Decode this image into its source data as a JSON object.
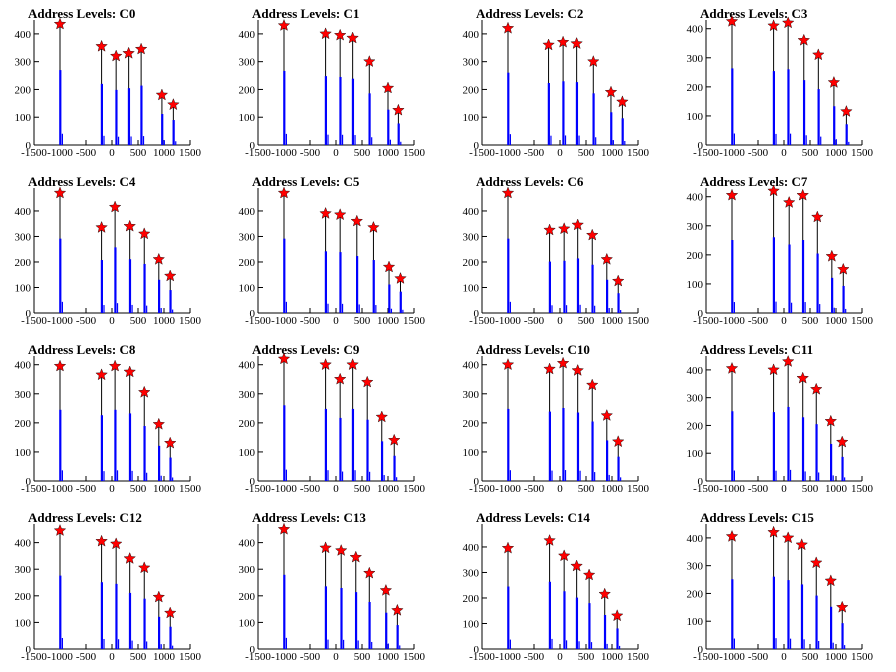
{
  "figure": {
    "background": "#ffffff",
    "histogram_color": "#0000ff",
    "marker_color": "#ff0000",
    "marker_shape": "star"
  },
  "chart_data": [
    {
      "type": "bar",
      "title": "Address Levels: C0",
      "xlim": [
        -1500,
        1500
      ],
      "ylim": [
        0,
        450
      ],
      "x_ticks": [
        -1500,
        -1000,
        -500,
        0,
        500,
        1000,
        1500
      ],
      "y_ticks": [
        0,
        100,
        200,
        300,
        400
      ],
      "peaks": [
        {
          "x": -1000,
          "y": 435
        },
        {
          "x": -200,
          "y": 355
        },
        {
          "x": 80,
          "y": 320
        },
        {
          "x": 320,
          "y": 330
        },
        {
          "x": 560,
          "y": 345
        },
        {
          "x": 960,
          "y": 180
        },
        {
          "x": 1180,
          "y": 145
        }
      ]
    },
    {
      "type": "bar",
      "title": "Address Levels: C1",
      "xlim": [
        -1500,
        1500
      ],
      "ylim": [
        0,
        450
      ],
      "x_ticks": [
        -1500,
        -1000,
        -500,
        0,
        500,
        1000,
        1500
      ],
      "y_ticks": [
        0,
        100,
        200,
        300,
        400
      ],
      "peaks": [
        {
          "x": -1000,
          "y": 430
        },
        {
          "x": -200,
          "y": 400
        },
        {
          "x": 80,
          "y": 395
        },
        {
          "x": 320,
          "y": 385
        },
        {
          "x": 640,
          "y": 300
        },
        {
          "x": 1000,
          "y": 205
        },
        {
          "x": 1200,
          "y": 125
        }
      ]
    },
    {
      "type": "bar",
      "title": "Address Levels: C2",
      "xlim": [
        -1500,
        1500
      ],
      "ylim": [
        0,
        450
      ],
      "x_ticks": [
        -1500,
        -1000,
        -500,
        0,
        500,
        1000,
        1500
      ],
      "y_ticks": [
        0,
        100,
        200,
        300,
        400
      ],
      "peaks": [
        {
          "x": -1000,
          "y": 420
        },
        {
          "x": -220,
          "y": 360
        },
        {
          "x": 60,
          "y": 370
        },
        {
          "x": 320,
          "y": 365
        },
        {
          "x": 640,
          "y": 300
        },
        {
          "x": 980,
          "y": 190
        },
        {
          "x": 1200,
          "y": 155
        }
      ]
    },
    {
      "type": "bar",
      "title": "Address Levels: C3",
      "xlim": [
        -1500,
        1500
      ],
      "ylim": [
        0,
        430
      ],
      "x_ticks": [
        -1500,
        -1000,
        -500,
        0,
        500,
        1000,
        1500
      ],
      "y_ticks": [
        0,
        100,
        200,
        300,
        400
      ],
      "peaks": [
        {
          "x": -1000,
          "y": 425
        },
        {
          "x": -200,
          "y": 410
        },
        {
          "x": 80,
          "y": 420
        },
        {
          "x": 380,
          "y": 360
        },
        {
          "x": 660,
          "y": 310
        },
        {
          "x": 960,
          "y": 215
        },
        {
          "x": 1200,
          "y": 115
        }
      ]
    },
    {
      "type": "bar",
      "title": "Address Levels: C4",
      "xlim": [
        -1500,
        1500
      ],
      "ylim": [
        0,
        490
      ],
      "x_ticks": [
        -1500,
        -1000,
        -500,
        0,
        500,
        1000,
        1500
      ],
      "y_ticks": [
        0,
        100,
        200,
        300,
        400
      ],
      "peaks": [
        {
          "x": -1000,
          "y": 470
        },
        {
          "x": -200,
          "y": 335
        },
        {
          "x": 60,
          "y": 415
        },
        {
          "x": 340,
          "y": 340
        },
        {
          "x": 620,
          "y": 310
        },
        {
          "x": 900,
          "y": 210
        },
        {
          "x": 1120,
          "y": 145
        }
      ]
    },
    {
      "type": "bar",
      "title": "Address Levels: C5",
      "xlim": [
        -1500,
        1500
      ],
      "ylim": [
        0,
        490
      ],
      "x_ticks": [
        -1500,
        -1000,
        -500,
        0,
        500,
        1000,
        1500
      ],
      "y_ticks": [
        0,
        100,
        200,
        300,
        400
      ],
      "peaks": [
        {
          "x": -1000,
          "y": 470
        },
        {
          "x": -200,
          "y": 390
        },
        {
          "x": 80,
          "y": 385
        },
        {
          "x": 400,
          "y": 360
        },
        {
          "x": 720,
          "y": 335
        },
        {
          "x": 1020,
          "y": 180
        },
        {
          "x": 1240,
          "y": 135
        }
      ]
    },
    {
      "type": "bar",
      "title": "Address Levels: C6",
      "xlim": [
        -1500,
        1500
      ],
      "ylim": [
        0,
        490
      ],
      "x_ticks": [
        -1500,
        -1000,
        -500,
        0,
        500,
        1000,
        1500
      ],
      "y_ticks": [
        0,
        100,
        200,
        300,
        400
      ],
      "peaks": [
        {
          "x": -1000,
          "y": 470
        },
        {
          "x": -200,
          "y": 325
        },
        {
          "x": 80,
          "y": 330
        },
        {
          "x": 340,
          "y": 345
        },
        {
          "x": 620,
          "y": 305
        },
        {
          "x": 900,
          "y": 210
        },
        {
          "x": 1120,
          "y": 125
        }
      ]
    },
    {
      "type": "bar",
      "title": "Address Levels: C7",
      "xlim": [
        -1500,
        1500
      ],
      "ylim": [
        0,
        430
      ],
      "x_ticks": [
        -1500,
        -1000,
        -500,
        0,
        500,
        1000,
        1500
      ],
      "y_ticks": [
        0,
        100,
        200,
        300,
        400
      ],
      "peaks": [
        {
          "x": -1000,
          "y": 405
        },
        {
          "x": -200,
          "y": 420
        },
        {
          "x": 100,
          "y": 380
        },
        {
          "x": 360,
          "y": 405
        },
        {
          "x": 640,
          "y": 330
        },
        {
          "x": 920,
          "y": 195
        },
        {
          "x": 1140,
          "y": 150
        }
      ]
    },
    {
      "type": "bar",
      "title": "Address Levels: C8",
      "xlim": [
        -1500,
        1500
      ],
      "ylim": [
        0,
        430
      ],
      "x_ticks": [
        -1500,
        -1000,
        -500,
        0,
        500,
        1000,
        1500
      ],
      "y_ticks": [
        0,
        100,
        200,
        300,
        400
      ],
      "peaks": [
        {
          "x": -1000,
          "y": 395
        },
        {
          "x": -200,
          "y": 365
        },
        {
          "x": 60,
          "y": 395
        },
        {
          "x": 340,
          "y": 375
        },
        {
          "x": 620,
          "y": 305
        },
        {
          "x": 900,
          "y": 195
        },
        {
          "x": 1120,
          "y": 130
        }
      ]
    },
    {
      "type": "bar",
      "title": "Address Levels: C9",
      "xlim": [
        -1500,
        1500
      ],
      "ylim": [
        0,
        430
      ],
      "x_ticks": [
        -1500,
        -1000,
        -500,
        0,
        500,
        1000,
        1500
      ],
      "y_ticks": [
        0,
        100,
        200,
        300,
        400
      ],
      "peaks": [
        {
          "x": -1000,
          "y": 420
        },
        {
          "x": -200,
          "y": 400
        },
        {
          "x": 80,
          "y": 350
        },
        {
          "x": 320,
          "y": 400
        },
        {
          "x": 600,
          "y": 340
        },
        {
          "x": 880,
          "y": 220
        },
        {
          "x": 1120,
          "y": 140
        }
      ]
    },
    {
      "type": "bar",
      "title": "Address Levels: C10",
      "xlim": [
        -1500,
        1500
      ],
      "ylim": [
        0,
        430
      ],
      "x_ticks": [
        -1500,
        -1000,
        -500,
        0,
        500,
        1000,
        1500
      ],
      "y_ticks": [
        0,
        100,
        200,
        300,
        400
      ],
      "peaks": [
        {
          "x": -1000,
          "y": 400
        },
        {
          "x": -200,
          "y": 385
        },
        {
          "x": 60,
          "y": 405
        },
        {
          "x": 340,
          "y": 380
        },
        {
          "x": 620,
          "y": 330
        },
        {
          "x": 900,
          "y": 225
        },
        {
          "x": 1120,
          "y": 135
        }
      ]
    },
    {
      "type": "bar",
      "title": "Address Levels: C11",
      "xlim": [
        -1500,
        1500
      ],
      "ylim": [
        0,
        450
      ],
      "x_ticks": [
        -1500,
        -1000,
        -500,
        0,
        500,
        1000,
        1500
      ],
      "y_ticks": [
        0,
        100,
        200,
        300,
        400
      ],
      "peaks": [
        {
          "x": -1000,
          "y": 405
        },
        {
          "x": -200,
          "y": 400
        },
        {
          "x": 80,
          "y": 430
        },
        {
          "x": 360,
          "y": 370
        },
        {
          "x": 620,
          "y": 330
        },
        {
          "x": 900,
          "y": 215
        },
        {
          "x": 1120,
          "y": 140
        }
      ]
    },
    {
      "type": "bar",
      "title": "Address Levels: C12",
      "xlim": [
        -1500,
        1500
      ],
      "ylim": [
        0,
        470
      ],
      "x_ticks": [
        -1500,
        -1000,
        -500,
        0,
        500,
        1000,
        1500
      ],
      "y_ticks": [
        0,
        100,
        200,
        300,
        400
      ],
      "peaks": [
        {
          "x": -1000,
          "y": 445
        },
        {
          "x": -200,
          "y": 405
        },
        {
          "x": 80,
          "y": 395
        },
        {
          "x": 340,
          "y": 340
        },
        {
          "x": 620,
          "y": 305
        },
        {
          "x": 900,
          "y": 195
        },
        {
          "x": 1120,
          "y": 135
        }
      ]
    },
    {
      "type": "bar",
      "title": "Address Levels: C13",
      "xlim": [
        -1500,
        1500
      ],
      "ylim": [
        0,
        470
      ],
      "x_ticks": [
        -1500,
        -1000,
        -500,
        0,
        500,
        1000,
        1500
      ],
      "y_ticks": [
        0,
        100,
        200,
        300,
        400
      ],
      "peaks": [
        {
          "x": -1000,
          "y": 450
        },
        {
          "x": -200,
          "y": 380
        },
        {
          "x": 100,
          "y": 370
        },
        {
          "x": 380,
          "y": 345
        },
        {
          "x": 640,
          "y": 285
        },
        {
          "x": 960,
          "y": 220
        },
        {
          "x": 1180,
          "y": 145
        }
      ]
    },
    {
      "type": "bar",
      "title": "Address Levels: C14",
      "xlim": [
        -1500,
        1500
      ],
      "ylim": [
        0,
        490
      ],
      "x_ticks": [
        -1500,
        -1000,
        -500,
        0,
        500,
        1000,
        1500
      ],
      "y_ticks": [
        0,
        100,
        200,
        300,
        400
      ],
      "peaks": [
        {
          "x": -1000,
          "y": 395
        },
        {
          "x": -200,
          "y": 425
        },
        {
          "x": 80,
          "y": 365
        },
        {
          "x": 320,
          "y": 325
        },
        {
          "x": 560,
          "y": 290
        },
        {
          "x": 860,
          "y": 215
        },
        {
          "x": 1100,
          "y": 130
        }
      ]
    },
    {
      "type": "bar",
      "title": "Address Levels: C15",
      "xlim": [
        -1500,
        1500
      ],
      "ylim": [
        0,
        450
      ],
      "x_ticks": [
        -1500,
        -1000,
        -500,
        0,
        500,
        1000,
        1500
      ],
      "y_ticks": [
        0,
        100,
        200,
        300,
        400
      ],
      "peaks": [
        {
          "x": -1000,
          "y": 405
        },
        {
          "x": -200,
          "y": 420
        },
        {
          "x": 80,
          "y": 400
        },
        {
          "x": 340,
          "y": 375
        },
        {
          "x": 620,
          "y": 310
        },
        {
          "x": 900,
          "y": 245
        },
        {
          "x": 1120,
          "y": 150
        }
      ]
    }
  ]
}
